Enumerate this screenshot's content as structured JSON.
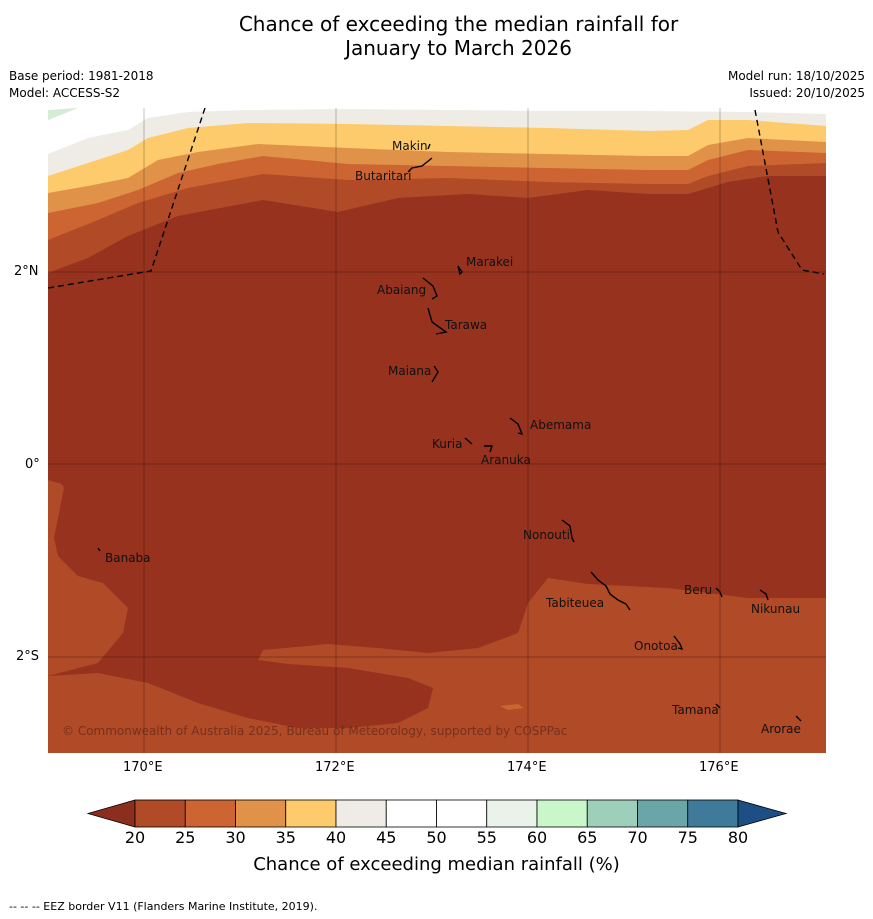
{
  "title": {
    "line1": "Chance of exceeding the median rainfall for",
    "line2": "January to March 2026"
  },
  "meta": {
    "base_period": "Base period: 1981-2018",
    "model": "Model: ACCESS-S2",
    "model_run": "Model run: 18/10/2025",
    "issued": "Issued: 20/10/2025"
  },
  "map": {
    "lat_labels": [
      "2°N",
      "0°",
      "2°S"
    ],
    "lon_labels": [
      "170°E",
      "172°E",
      "174°E",
      "176°E"
    ],
    "places": [
      "Makin",
      "Butaritari",
      "Marakei",
      "Abaiang",
      "Tarawa",
      "Maiana",
      "Abemama",
      "Kuria",
      "Aranuka",
      "Banaba",
      "Nonouti",
      "Beru",
      "Tabiteuea",
      "Nikunau",
      "Onotoa",
      "Tamana",
      "Arorae"
    ],
    "copyright": "© Commonwealth of Australia 2025, Bureau of Meteorology, supported by COSPPac"
  },
  "colorbar": {
    "label": "Chance of exceeding median rainfall (%)",
    "ticks": [
      "20",
      "25",
      "30",
      "35",
      "40",
      "45",
      "50",
      "55",
      "60",
      "65",
      "70",
      "75",
      "80"
    ],
    "colors": [
      "#8b2e1d",
      "#b14a27",
      "#cc6532",
      "#e09348",
      "#fdcb6b",
      "#efebe5",
      "#ffffff",
      "#ffffff",
      "#e9f3e9",
      "#c9f7c9",
      "#9ecfba",
      "#6aa6a8",
      "#3f7a9a",
      "#1d4f85"
    ]
  },
  "footnote": "-- -- -- EEZ border V11 (Flanders Marine Institute, 2019)."
}
